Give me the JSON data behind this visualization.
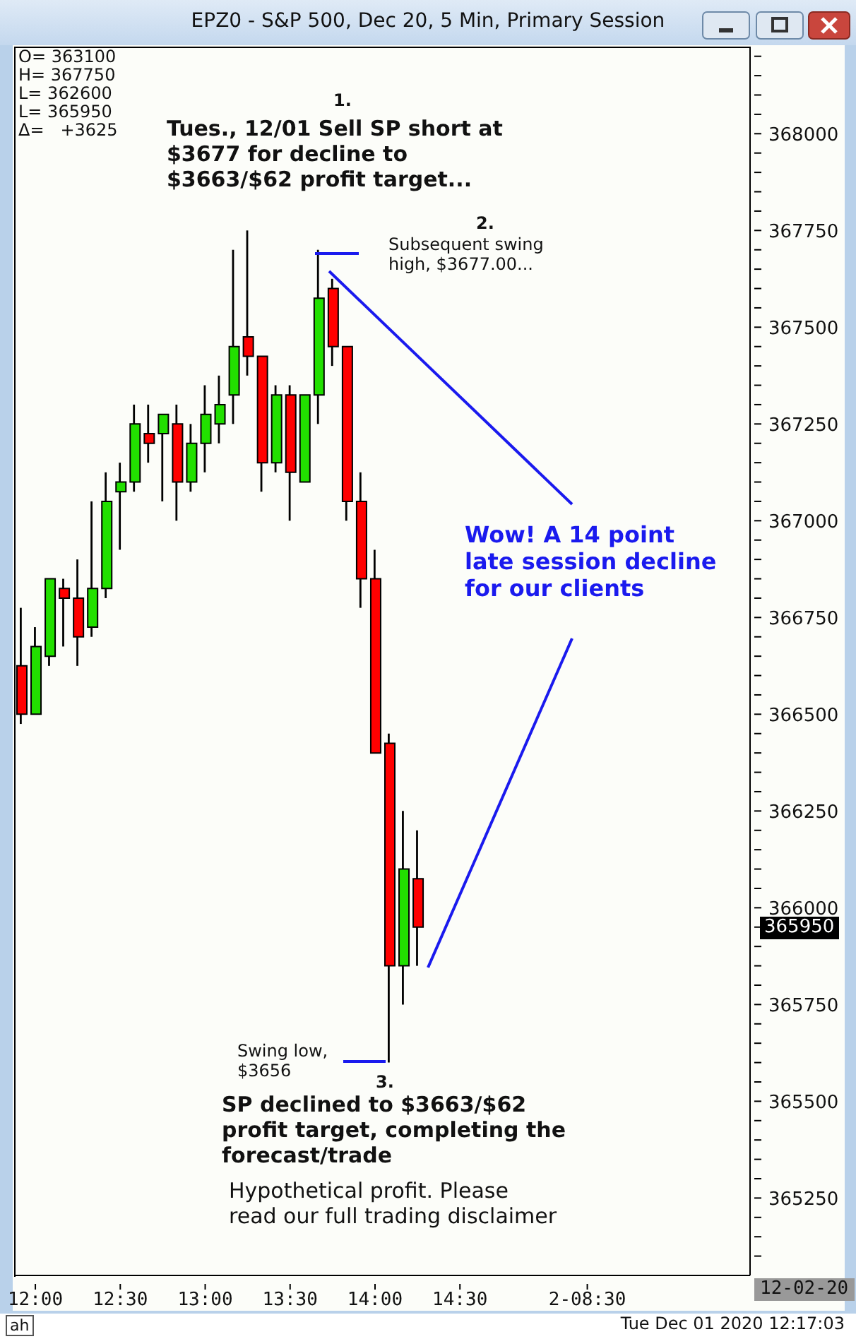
{
  "chart_data": {
    "type": "candlestick",
    "title": "EPZ0 - S&P 500, Dec 20, 5 Min, Primary Session",
    "categories": [
      null,
      "12:00",
      null,
      null,
      null,
      null,
      null,
      "12:30",
      null,
      null,
      null,
      null,
      null,
      "13:00",
      null,
      null,
      null,
      null,
      null,
      "13:30",
      null,
      null,
      null,
      null,
      null,
      "14:00",
      null,
      null,
      null,
      null,
      null,
      "14:30",
      null,
      null,
      null,
      null,
      null,
      null,
      null,
      null,
      "2-08:30",
      null,
      null,
      null,
      null,
      null,
      null,
      null,
      null,
      null,
      null,
      null
    ],
    "ohlc": [
      [
        366625,
        366775,
        366475,
        366500
      ],
      [
        366500,
        366725,
        366500,
        366675
      ],
      [
        366650,
        366850,
        366625,
        366850
      ],
      [
        366825,
        366850,
        366675,
        366800
      ],
      [
        366800,
        366900,
        366625,
        366700
      ],
      [
        366725,
        367050,
        366700,
        366825
      ],
      [
        366825,
        367125,
        366800,
        367050
      ],
      [
        367075,
        367150,
        366925,
        367100
      ],
      [
        367100,
        367300,
        367075,
        367250
      ],
      [
        367225,
        367300,
        367150,
        367200
      ],
      [
        367225,
        367275,
        367050,
        367275
      ],
      [
        367250,
        367300,
        367000,
        367100
      ],
      [
        367100,
        367250,
        367075,
        367200
      ],
      [
        367200,
        367350,
        367125,
        367275
      ],
      [
        367250,
        367375,
        367200,
        367300
      ],
      [
        367325,
        367700,
        367250,
        367450
      ],
      [
        367475,
        367750,
        367375,
        367425
      ],
      [
        367425,
        367425,
        367075,
        367150
      ],
      [
        367150,
        367350,
        367125,
        367325
      ],
      [
        367325,
        367350,
        367000,
        367125
      ],
      [
        367100,
        367325,
        367100,
        367325
      ],
      [
        367325,
        367700,
        367250,
        367575
      ],
      [
        367600,
        367625,
        367400,
        367450
      ],
      [
        367450,
        367450,
        367000,
        367050
      ],
      [
        367050,
        367125,
        366775,
        366850
      ],
      [
        366850,
        366925,
        366400,
        366400
      ],
      [
        366425,
        366450,
        365600,
        365850
      ],
      [
        365850,
        366250,
        365750,
        366100
      ],
      [
        366075,
        366200,
        365850,
        365950
      ],
      null,
      null,
      null,
      null,
      null,
      null,
      null,
      null,
      null,
      null,
      null,
      null,
      null,
      null,
      null,
      null,
      null,
      null,
      null,
      null,
      null,
      null,
      null
    ],
    "colors": [
      "#ff0000",
      "#22e000",
      "#22e000",
      "#ff0000",
      "#ff0000",
      "#22e000",
      "#22e000",
      "#22e000",
      "#22e000",
      "#ff0000",
      "#22e000",
      "#ff0000",
      "#22e000",
      "#22e000",
      "#22e000",
      "#22e000",
      "#ff0000",
      "#ff0000",
      "#22e000",
      "#ff0000",
      "#22e000",
      "#22e000",
      "#ff0000",
      "#ff0000",
      "#ff0000",
      "#ff0000",
      "#ff0000",
      "#22e000",
      "#ff0000",
      null,
      null,
      null,
      null,
      null,
      null,
      null,
      null,
      null,
      null,
      null,
      null,
      null,
      null,
      null,
      null,
      null,
      null,
      null,
      null,
      null,
      null,
      null
    ],
    "ylim": [
      365050,
      368225
    ],
    "yticks": [
      {
        "value": 365100,
        "label": null
      },
      {
        "value": 365150,
        "label": null
      },
      {
        "value": 365200,
        "label": null
      },
      365250,
      {
        "value": 365300,
        "label": null
      },
      {
        "value": 365350,
        "label": null
      },
      {
        "value": 365400,
        "label": null
      },
      {
        "value": 365450,
        "label": null
      },
      365500,
      {
        "value": 365550,
        "label": null
      },
      {
        "value": 365600,
        "label": null
      },
      {
        "value": 365650,
        "label": null
      },
      {
        "value": 365700,
        "label": null
      },
      365750,
      {
        "value": 365800,
        "label": null
      },
      {
        "value": 365850,
        "label": null
      },
      {
        "value": 365900,
        "label": null
      },
      {
        "value": 365950,
        "label": null
      },
      366000,
      {
        "value": 366050,
        "label": null
      },
      {
        "value": 366100,
        "label": null
      },
      {
        "value": 366150,
        "label": null
      },
      {
        "value": 366200,
        "label": null
      },
      366250,
      {
        "value": 366300,
        "label": null
      },
      {
        "value": 366350,
        "label": null
      },
      {
        "value": 366400,
        "label": null
      },
      {
        "value": 366450,
        "label": null
      },
      366500,
      {
        "value": 366550,
        "label": null
      },
      {
        "value": 366600,
        "label": null
      },
      {
        "value": 366650,
        "label": null
      },
      {
        "value": 366700,
        "label": null
      },
      366750,
      {
        "value": 366800,
        "label": null
      },
      {
        "value": 366850,
        "label": null
      },
      {
        "value": 366900,
        "label": null
      },
      {
        "value": 366950,
        "label": null
      },
      367000,
      {
        "value": 367050,
        "label": null
      },
      {
        "value": 367100,
        "label": null
      },
      {
        "value": 367150,
        "label": null
      },
      {
        "value": 367200,
        "label": null
      },
      367250,
      {
        "value": 367300,
        "label": null
      },
      {
        "value": 367350,
        "label": null
      },
      {
        "value": 367400,
        "label": null
      },
      {
        "value": 367450,
        "label": null
      },
      367500,
      {
        "value": 367550,
        "label": null
      },
      {
        "value": 367600,
        "label": null
      },
      {
        "value": 367650,
        "label": null
      },
      {
        "value": 367700,
        "label": null
      },
      367750,
      {
        "value": 367800,
        "label": null
      },
      {
        "value": 367850,
        "label": null
      },
      {
        "value": 367900,
        "label": null
      },
      {
        "value": 367950,
        "label": null
      },
      368000,
      {
        "value": 368050,
        "label": null
      },
      {
        "value": 368100,
        "label": null
      },
      {
        "value": 368150,
        "label": null
      },
      {
        "value": 368200,
        "label": null
      }
    ],
    "annotations": [
      "O= 363100",
      "H= 367750",
      "L= 362600",
      "L= 365950",
      "Δ=   +3625",
      "1.",
      "Tues., 12/01 Sell SP short at $3677 for decline to $3663/$62 profit target...",
      "2.",
      "Subsequent swing high, $3677.00...",
      "Wow! A 14 point late session decline for our clients",
      "Swing low, $3656",
      "3.",
      "SP declined to $3663/$62 profit target, completing the forecast/trade",
      "Hypothetical profit. Please read our full trading disclaimer",
      "365950",
      "ah",
      "12-02-20",
      "Tue Dec 01 2020 12:17:03"
    ]
  }
}
